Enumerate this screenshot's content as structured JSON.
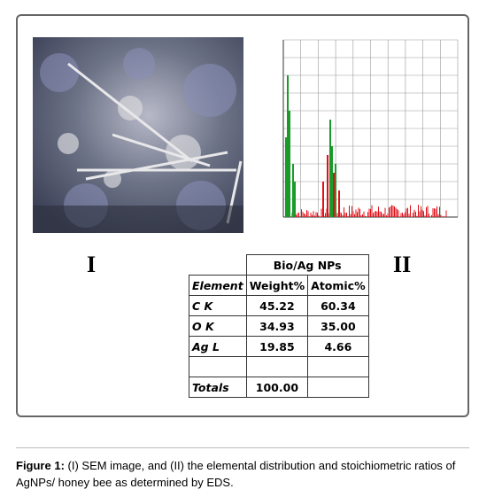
{
  "figure": {
    "panel_labels": [
      "I",
      "II"
    ],
    "table": {
      "group_header": "Bio/Ag NPs",
      "columns": [
        "Element",
        "Weight%",
        "Atomic%"
      ],
      "rows": [
        [
          "C K",
          "45.22",
          "60.34"
        ],
        [
          "O K",
          "34.93",
          "35.00"
        ],
        [
          "Ag L",
          "19.85",
          "4.66"
        ]
      ],
      "totals": [
        "Totals",
        "100.00"
      ]
    },
    "caption": {
      "label": "Figure 1:",
      "text": " (I) SEM image, and (II) the elemental distribution and stoichiometric ratios of AgNPs/ honey bee as determined by EDS."
    }
  }
}
